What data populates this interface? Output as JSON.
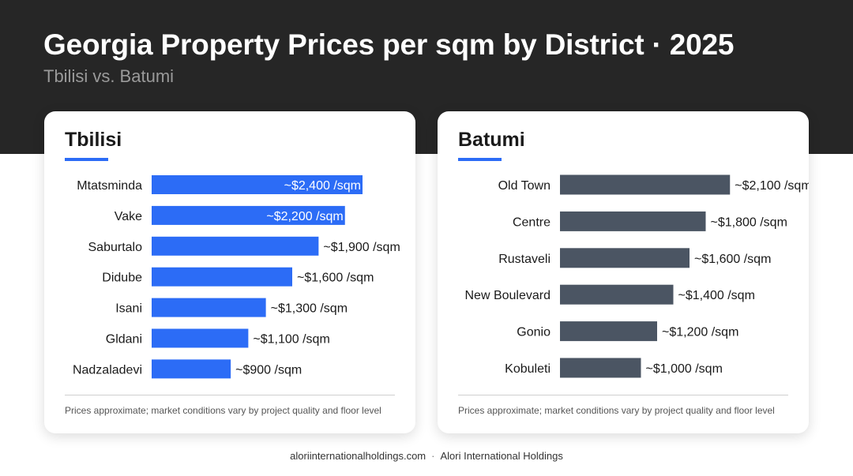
{
  "header": {
    "title": "Georgia Property Prices per sqm by District · 2025",
    "subtitle": "Tbilisi vs. Batumi"
  },
  "colors": {
    "header_bg": "#262626",
    "tbilisi_bar": "#2c6cf6",
    "batumi_bar": "#4b5563",
    "accent_underline": "#2c6cf6"
  },
  "chart_data": [
    {
      "type": "bar",
      "orientation": "horizontal",
      "title": "Tbilisi",
      "categories": [
        "Mtatsminda",
        "Vake",
        "Saburtalo",
        "Didube",
        "Isani",
        "Gldani",
        "Nadzaladevi"
      ],
      "values": [
        2400,
        2200,
        1900,
        1600,
        1300,
        1100,
        900
      ],
      "labels": [
        "~$2,400 /sqm",
        "~$2,200 /sqm",
        "~$1,900 /sqm",
        "~$1,600 /sqm",
        "~$1,300 /sqm",
        "~$1,100 /sqm",
        "~$900 /sqm"
      ],
      "xlim": [
        0,
        2400
      ],
      "grid": false,
      "footnote": "Prices approximate; market conditions vary by project quality and floor level"
    },
    {
      "type": "bar",
      "orientation": "horizontal",
      "title": "Batumi",
      "categories": [
        "Old Town",
        "Centre",
        "Rustaveli",
        "New Boulevard",
        "Gonio",
        "Kobuleti"
      ],
      "values": [
        2100,
        1800,
        1600,
        1400,
        1200,
        1000
      ],
      "labels": [
        "~$2,100 /sqm",
        "~$1,800 /sqm",
        "~$1,600 /sqm",
        "~$1,400 /sqm",
        "~$1,200 /sqm",
        "~$1,000 /sqm"
      ],
      "xlim": [
        0,
        2400
      ],
      "grid": false,
      "footnote": "Prices approximate; market conditions vary by project quality and floor level"
    }
  ],
  "footer": {
    "website": "aloriinternationalholdings.com",
    "separator": "·",
    "company": "Alori International Holdings"
  }
}
